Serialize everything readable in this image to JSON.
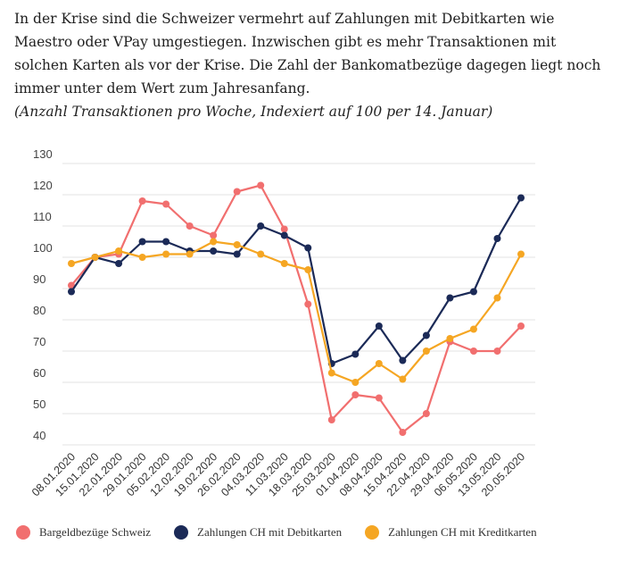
{
  "intro": {
    "lines": [
      "In der Krise sind die Schweizer vermehrt auf Zahlungen mit Debitkarten wie",
      "Maestro oder VPay umgestiegen. Inzwischen gibt es mehr Transaktionen mit",
      "solchen Karten als vor der Krise. Die Zahl der Bankomatbezüge dagegen liegt noch",
      "immer unter dem Wert zum Jahresanfang."
    ],
    "subtitle": "(Anzahl Transaktionen pro Woche, Indexiert auf 100 per 14. Januar)"
  },
  "chart_data": {
    "type": "line",
    "categories": [
      "08.01.2020",
      "15.01.2020",
      "22.01.2020",
      "29.01.2020",
      "05.02.2020",
      "12.02.2020",
      "19.02.2020",
      "26.02.2020",
      "04.03.2020",
      "11.03.2020",
      "18.03.2020",
      "25.03.2020",
      "01.04.2020",
      "08.04.2020",
      "15.04.2020",
      "22.04.2020",
      "29.04.2020",
      "06.05.2020",
      "13.05.2020",
      "20.05.2020"
    ],
    "y_ticks": [
      40,
      50,
      60,
      70,
      80,
      90,
      100,
      110,
      120,
      130
    ],
    "ylim": [
      40,
      130
    ],
    "grid": "horizontal",
    "legend_position": "bottom",
    "series": [
      {
        "name": "Bargeldbezüge Schweiz",
        "color": "#f16f6f",
        "values": [
          91,
          100,
          101,
          118,
          117,
          110,
          107,
          121,
          123,
          109,
          85,
          48,
          56,
          55,
          44,
          50,
          73,
          70,
          70,
          78
        ]
      },
      {
        "name": "Zahlungen CH mit Debitkarten",
        "color": "#1b2a57",
        "values": [
          89,
          100,
          98,
          105,
          105,
          102,
          102,
          101,
          110,
          107,
          103,
          66,
          69,
          78,
          67,
          75,
          87,
          89,
          106,
          119
        ]
      },
      {
        "name": "Zahlungen CH mit Kreditkarten",
        "color": "#f5a623",
        "values": [
          98,
          100,
          102,
          100,
          101,
          101,
          105,
          104,
          101,
          98,
          96,
          63,
          60,
          66,
          61,
          70,
          74,
          77,
          87,
          101
        ]
      }
    ]
  }
}
